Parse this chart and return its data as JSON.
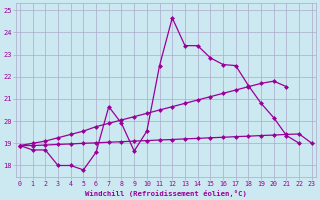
{
  "xlabel": "Windchill (Refroidissement éolien,°C)",
  "x_jagged": [
    0,
    1,
    2,
    3,
    4,
    5,
    6,
    7,
    8,
    9,
    10,
    11,
    12,
    13,
    14,
    15,
    16,
    17,
    18,
    19,
    20,
    21,
    22
  ],
  "y_jagged": [
    18.9,
    18.7,
    18.7,
    18.0,
    18.0,
    17.8,
    18.6,
    20.65,
    19.9,
    18.65,
    19.55,
    22.5,
    24.65,
    23.4,
    23.4,
    22.85,
    22.55,
    22.5,
    21.6,
    20.8,
    20.15,
    19.35,
    19.0
  ],
  "x_upper": [
    0,
    1,
    2,
    3,
    4,
    5,
    6,
    7,
    8,
    9,
    10,
    11,
    12,
    13,
    14,
    15,
    16,
    17,
    18,
    19,
    20,
    21
  ],
  "y_upper": [
    18.9,
    19.0,
    19.1,
    19.25,
    19.4,
    19.55,
    19.75,
    19.9,
    20.05,
    20.2,
    20.35,
    20.5,
    20.65,
    20.8,
    20.95,
    21.1,
    21.25,
    21.4,
    21.55,
    21.7,
    21.8,
    21.55
  ],
  "x_lower": [
    0,
    1,
    2,
    3,
    4,
    5,
    6,
    7,
    8,
    9,
    10,
    11,
    12,
    13,
    14,
    15,
    16,
    17,
    18,
    19,
    20,
    21,
    22,
    23
  ],
  "y_lower": [
    18.9,
    18.9,
    18.92,
    18.95,
    18.97,
    19.0,
    19.02,
    19.05,
    19.07,
    19.1,
    19.12,
    19.15,
    19.17,
    19.2,
    19.22,
    19.25,
    19.27,
    19.3,
    19.32,
    19.35,
    19.37,
    19.4,
    19.42,
    19.0
  ],
  "line_color": "#990099",
  "bg_color": "#cce8f0",
  "grid_color": "#aaaacc",
  "ylim": [
    17.5,
    25.3
  ],
  "xlim": [
    -0.3,
    23.3
  ],
  "yticks": [
    18,
    19,
    20,
    21,
    22,
    23,
    24,
    25
  ],
  "xticks": [
    0,
    1,
    2,
    3,
    4,
    5,
    6,
    7,
    8,
    9,
    10,
    11,
    12,
    13,
    14,
    15,
    16,
    17,
    18,
    19,
    20,
    21,
    22,
    23
  ]
}
